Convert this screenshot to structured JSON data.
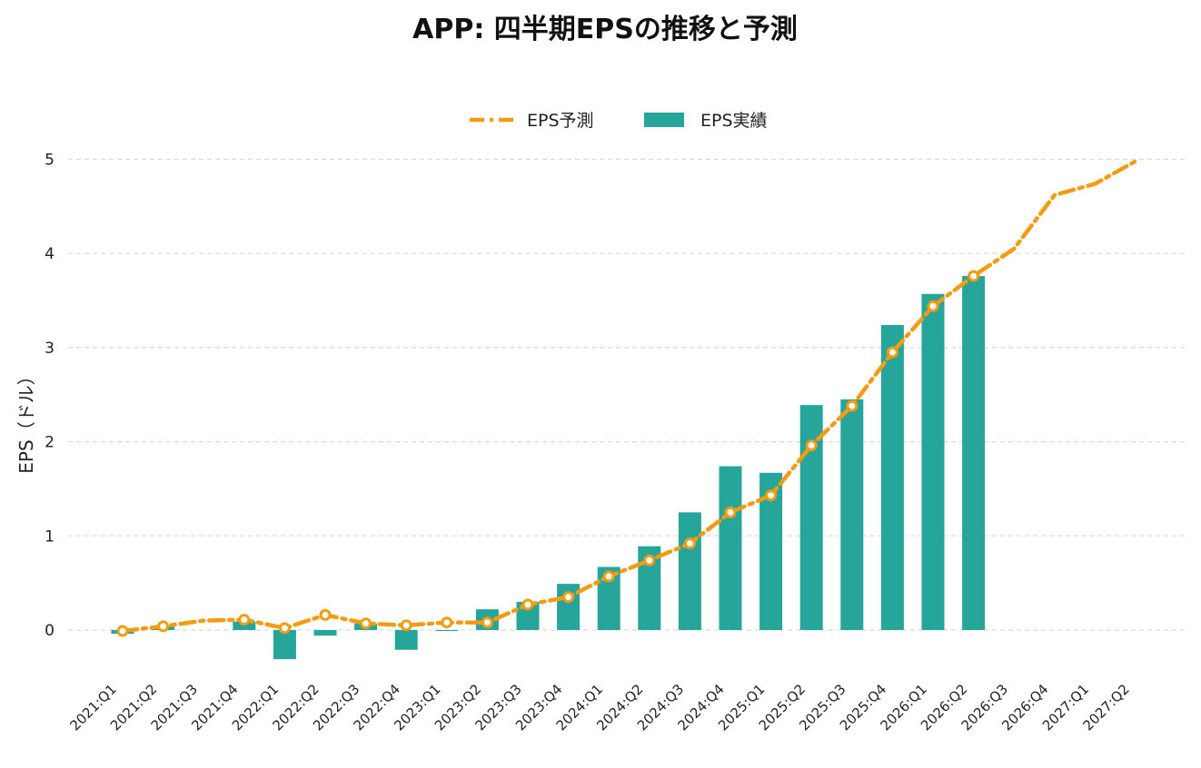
{
  "chart_data": {
    "type": "bar",
    "title": "APP: 四半期EPSの推移と予測",
    "ylabel": "EPS（ドル）",
    "xlabel": "",
    "ylim": [
      -0.55,
      5.2
    ],
    "yticks": [
      0,
      1,
      2,
      3,
      4,
      5
    ],
    "grid": true,
    "legend_position": "top-center",
    "categories": [
      "2021:Q1",
      "2021:Q2",
      "2021:Q3",
      "2021:Q4",
      "2022:Q1",
      "2022:Q2",
      "2022:Q3",
      "2022:Q4",
      "2023:Q1",
      "2023:Q2",
      "2023:Q3",
      "2023:Q4",
      "2024:Q1",
      "2024:Q2",
      "2024:Q3",
      "2024:Q4",
      "2025:Q1",
      "2025:Q2",
      "2025:Q3",
      "2025:Q4",
      "2026:Q1",
      "2026:Q2",
      "2026:Q3",
      "2026:Q4",
      "2027:Q1",
      "2027:Q2"
    ],
    "series": [
      {
        "name": "EPS予測",
        "kind": "line",
        "color": "#f39c12",
        "values": [
          -0.01,
          0.04,
          0.1,
          0.11,
          0.02,
          0.16,
          0.07,
          0.05,
          0.08,
          0.08,
          0.27,
          0.35,
          0.57,
          0.74,
          0.92,
          1.25,
          1.43,
          1.96,
          2.38,
          2.95,
          3.44,
          3.76,
          4.05,
          4.62,
          4.74,
          4.98
        ]
      },
      {
        "name": "EPS実績",
        "kind": "bar",
        "color": "#26a69a",
        "values": [
          -0.04,
          0.04,
          null,
          0.09,
          -0.31,
          -0.06,
          0.07,
          -0.21,
          -0.01,
          0.22,
          0.3,
          0.49,
          0.67,
          0.89,
          1.25,
          1.74,
          1.67,
          2.39,
          2.45,
          3.24,
          3.57,
          3.76,
          null,
          null,
          null,
          null
        ]
      }
    ]
  }
}
